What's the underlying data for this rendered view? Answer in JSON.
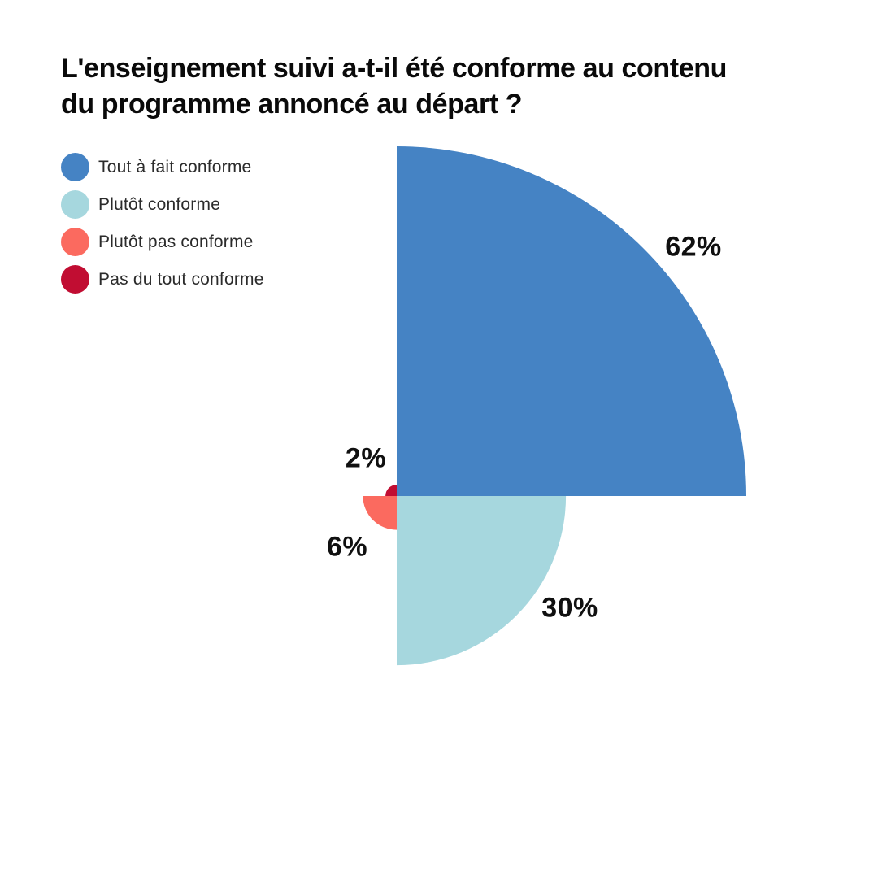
{
  "page": {
    "background": "#ffffff"
  },
  "title": {
    "line1": "L'enseignement suivi a-t-il été conforme au contenu",
    "line2": "du programme annoncé au départ ?",
    "full": "L'enseignement suivi a-t-il été conforme au contenu du programme annoncé au départ ?"
  },
  "chart_data": {
    "type": "pie",
    "variant": "polar-area-quarter-sectors",
    "title": "L'enseignement suivi a-t-il été conforme au contenu du programme annoncé au départ ?",
    "unit": "%",
    "categories": [
      "Tout à fait conforme",
      "Plutôt conforme",
      "Plutôt pas conforme",
      "Pas du tout conforme"
    ],
    "values": [
      62,
      30,
      6,
      2
    ],
    "labels": [
      "62%",
      "30%",
      "6%",
      "2%"
    ],
    "colors": [
      "#4583C4",
      "#A6D7DE",
      "#FB6A5F",
      "#C10D32"
    ],
    "legend_position": "left",
    "slice_angle_deg": 90,
    "start_at": "12-oclock",
    "clockwise": true,
    "radius_scaling": "proportional-to-value",
    "grid": false
  }
}
